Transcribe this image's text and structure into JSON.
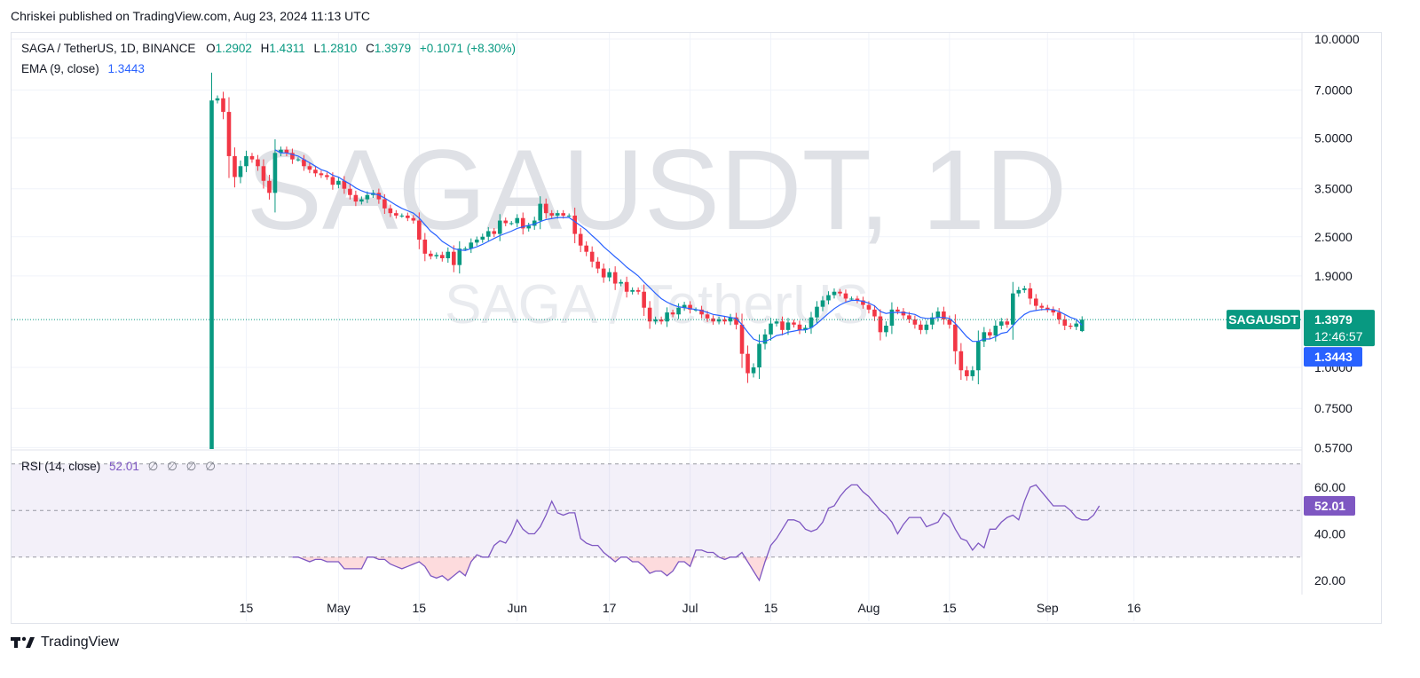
{
  "header": {
    "published_by": "Chriskei published on TradingView.com, Aug 23, 2024 11:13 UTC"
  },
  "legend": {
    "symbol": "SAGA / TetherUS, 1D, BINANCE",
    "open_label": "O",
    "open": "1.2902",
    "high_label": "H",
    "high": "1.4311",
    "low_label": "L",
    "low": "1.2810",
    "close_label": "C",
    "close": "1.3979",
    "change": "+0.1071 (+8.30%)",
    "ema_label": "EMA (9, close)",
    "ema_value": "1.3443",
    "rsi_label": "RSI (14, close)",
    "rsi_value": "52.01",
    "rsi_extra": [
      "∅",
      "∅",
      "∅",
      "∅"
    ]
  },
  "watermark": {
    "main": "SAGAUSDT, 1D",
    "sub": "SAGA / TetherUS"
  },
  "price_tag": {
    "symbol": "SAGAUSDT",
    "price": "1.3979",
    "countdown": "12:46:57",
    "ema": "1.3443"
  },
  "rsi_tag": "52.01",
  "footer": {
    "brand": "TradingView"
  },
  "colors": {
    "up": "#089981",
    "down": "#f23645",
    "ema": "#2962ff",
    "rsi": "#7e57c2"
  },
  "chart_data": [
    {
      "type": "candlestick",
      "title": "SAGA / TetherUS, 1D, BINANCE",
      "scale": "log",
      "y_ticks": [
        10,
        7,
        5,
        3.5,
        2.5,
        1.9,
        1.3979,
        1.0,
        0.75,
        0.57
      ],
      "y_tick_labels": [
        "10.0000",
        "7.0000",
        "5.0000",
        "3.5000",
        "2.5000",
        "1.9000",
        "1.3979",
        "1.0000",
        "0.7500",
        "0.5700"
      ],
      "x_tick_labels": [
        "15",
        "May",
        "15",
        "Jun",
        "17",
        "Jul",
        "15",
        "Aug",
        "15",
        "Sep",
        "16"
      ],
      "x_tick_dates": [
        "2024-04-15",
        "2024-05-01",
        "2024-05-15",
        "2024-06-01",
        "2024-06-17",
        "2024-07-01",
        "2024-07-15",
        "2024-08-01",
        "2024-08-15",
        "2024-09-01",
        "2024-09-16"
      ],
      "first_date": "2024-04-09",
      "closes": [
        6.5,
        6.6,
        6.0,
        4.4,
        3.8,
        4.1,
        4.4,
        4.3,
        4.1,
        3.7,
        3.4,
        4.5,
        4.6,
        4.5,
        4.3,
        4.3,
        4.1,
        4.0,
        3.9,
        3.85,
        3.8,
        3.6,
        3.7,
        3.5,
        3.35,
        3.2,
        3.25,
        3.35,
        3.4,
        3.25,
        3.05,
        2.95,
        2.9,
        2.9,
        2.85,
        2.8,
        2.45,
        2.22,
        2.18,
        2.2,
        2.15,
        2.25,
        2.05,
        2.3,
        2.3,
        2.4,
        2.45,
        2.5,
        2.6,
        2.55,
        2.8,
        2.75,
        2.75,
        2.85,
        2.65,
        2.7,
        2.8,
        3.15,
        2.95,
        2.9,
        2.95,
        2.9,
        2.9,
        2.55,
        2.35,
        2.25,
        2.1,
        2.0,
        1.88,
        1.95,
        1.8,
        1.82,
        1.7,
        1.72,
        1.7,
        1.52,
        1.38,
        1.4,
        1.38,
        1.47,
        1.45,
        1.52,
        1.55,
        1.5,
        1.5,
        1.45,
        1.41,
        1.38,
        1.4,
        1.38,
        1.42,
        1.35,
        1.1,
        0.96,
        1.0,
        1.18,
        1.26,
        1.36,
        1.38,
        1.3,
        1.37,
        1.35,
        1.3,
        1.32,
        1.42,
        1.53,
        1.6,
        1.66,
        1.7,
        1.68,
        1.62,
        1.62,
        1.6,
        1.55,
        1.5,
        1.43,
        1.28,
        1.34,
        1.5,
        1.48,
        1.44,
        1.4,
        1.35,
        1.3,
        1.35,
        1.42,
        1.48,
        1.4,
        1.35,
        1.12,
        0.98,
        0.94,
        0.98,
        1.2,
        1.28,
        1.25,
        1.34,
        1.38,
        1.35,
        1.68,
        1.72,
        1.74,
        1.62,
        1.54,
        1.52,
        1.5,
        1.47,
        1.4,
        1.34,
        1.33,
        1.36,
        1.4
      ],
      "ema9": [
        null,
        null,
        null,
        null,
        null,
        null,
        null,
        null,
        null,
        null,
        null,
        4.6,
        4.5,
        4.5,
        4.45,
        4.4,
        4.3,
        4.2,
        4.1,
        4.0,
        3.95,
        3.85,
        3.8,
        3.7,
        3.62,
        3.52,
        3.45,
        3.4,
        3.38,
        3.35,
        3.28,
        3.2,
        3.12,
        3.05,
        3.0,
        2.95,
        2.85,
        2.72,
        2.6,
        2.52,
        2.42,
        2.36,
        2.3,
        2.28,
        2.27,
        2.3,
        2.33,
        2.37,
        2.42,
        2.47,
        2.52,
        2.56,
        2.6,
        2.65,
        2.68,
        2.71,
        2.73,
        2.78,
        2.82,
        2.84,
        2.86,
        2.86,
        2.86,
        2.78,
        2.7,
        2.62,
        2.52,
        2.43,
        2.33,
        2.25,
        2.17,
        2.1,
        2.02,
        1.96,
        1.9,
        1.82,
        1.75,
        1.68,
        1.62,
        1.58,
        1.55,
        1.53,
        1.52,
        1.51,
        1.5,
        1.49,
        1.47,
        1.45,
        1.44,
        1.43,
        1.42,
        1.41,
        1.35,
        1.28,
        1.22,
        1.2,
        1.2,
        1.22,
        1.25,
        1.26,
        1.28,
        1.29,
        1.3,
        1.3,
        1.32,
        1.36,
        1.41,
        1.46,
        1.51,
        1.55,
        1.58,
        1.6,
        1.6,
        1.59,
        1.57,
        1.54,
        1.48,
        1.46,
        1.47,
        1.47,
        1.47,
        1.46,
        1.45,
        1.42,
        1.41,
        1.41,
        1.42,
        1.42,
        1.41,
        1.36,
        1.3,
        1.24,
        1.2,
        1.2,
        1.22,
        1.22,
        1.24,
        1.27,
        1.28,
        1.34,
        1.4,
        1.45,
        1.48,
        1.49,
        1.5,
        1.5,
        1.5,
        1.48,
        1.45,
        1.42,
        1.4,
        1.3443
      ],
      "last_bar": {
        "open": 1.2902,
        "high": 1.4311,
        "low": 1.281,
        "close": 1.3979
      },
      "last_close_line": 1.3979
    },
    {
      "type": "line",
      "title": "RSI (14, close)",
      "y_ticks": [
        60,
        40,
        20
      ],
      "y_tick_labels": [
        "60.00",
        "40.00",
        "20.00"
      ],
      "band": [
        30,
        70
      ],
      "midline": 50,
      "rsi": [
        null,
        null,
        null,
        null,
        null,
        null,
        null,
        null,
        null,
        null,
        null,
        null,
        null,
        null,
        30,
        30,
        29,
        28,
        29,
        29,
        28,
        28,
        28,
        25,
        25,
        25,
        25,
        30,
        30,
        29,
        29,
        27,
        26,
        25,
        26,
        27,
        28,
        26,
        22,
        21,
        22,
        20,
        22,
        24,
        22,
        28,
        31,
        30,
        30,
        35,
        37,
        36,
        40,
        46,
        42,
        40,
        40,
        43,
        48,
        54,
        49,
        48,
        49,
        49,
        38,
        36,
        35,
        35,
        32,
        30,
        28,
        30,
        30,
        28,
        28,
        26,
        23,
        24,
        24,
        22,
        24,
        28,
        28,
        26,
        33,
        33,
        32,
        32,
        30,
        29,
        30,
        30,
        32,
        28,
        24,
        20,
        28,
        35,
        38,
        42,
        46,
        46,
        45,
        42,
        41,
        42,
        45,
        51,
        52,
        56,
        59,
        61,
        61,
        58,
        56,
        53,
        50,
        48,
        45,
        40,
        44,
        47,
        47,
        47,
        43,
        44,
        45,
        49,
        47,
        42,
        38,
        37,
        33,
        36,
        34,
        42,
        42,
        45,
        47,
        48,
        46,
        54,
        60,
        61,
        58,
        55,
        52,
        52,
        52,
        50,
        47,
        46,
        46,
        48,
        52.01
      ]
    }
  ]
}
